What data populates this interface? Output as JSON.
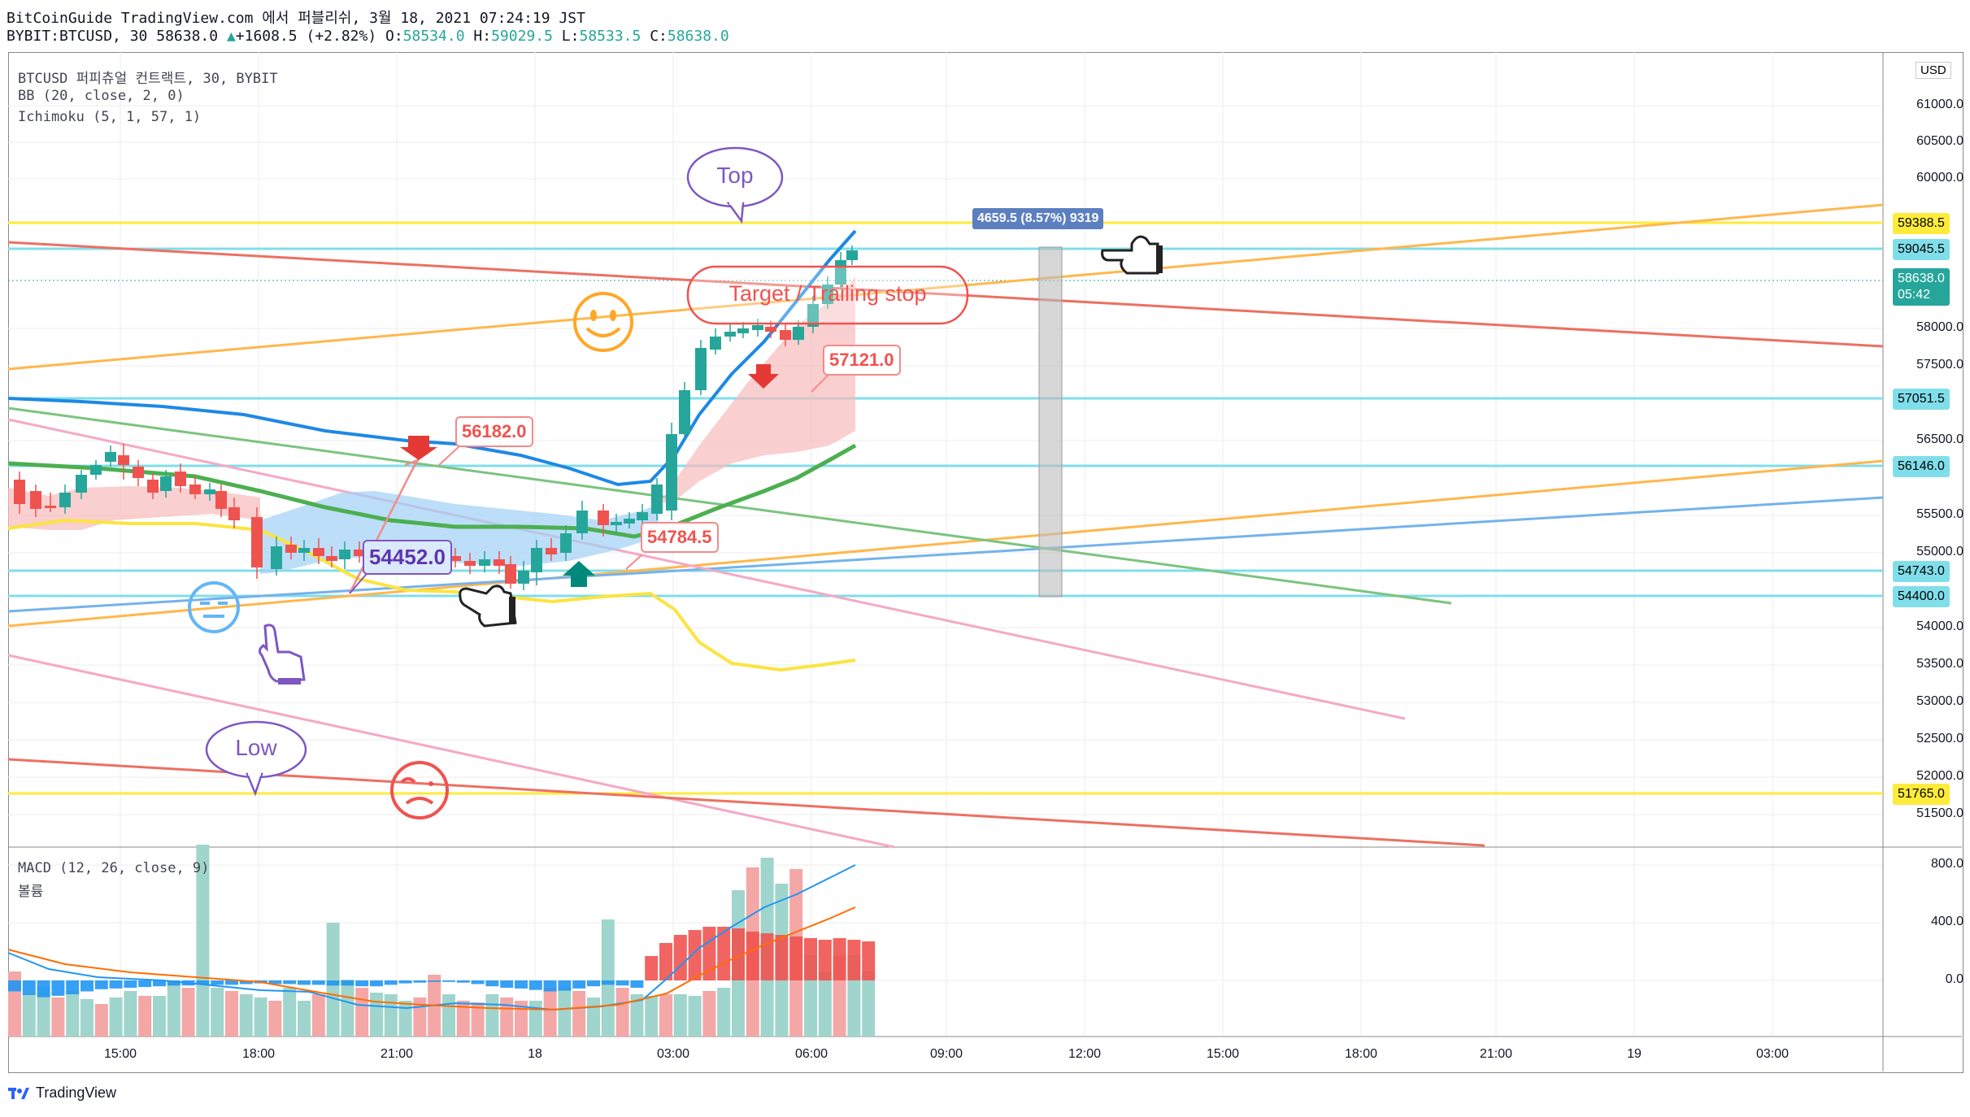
{
  "header": {
    "line1": "BitCoinGuide TradingView.com 에서 퍼블리쉬, 3월 18, 2021 07:24:19 JST",
    "symbol": "BYBIT:BTCUSD, 30",
    "last": "58638.0",
    "change": "+1608.5 (+2.82%)",
    "o_label": "O:",
    "o": "58534.0",
    "h_label": "H:",
    "h": "59029.5",
    "l_label": "L:",
    "l": "58533.5",
    "c_label": "C:",
    "c": "58638.0"
  },
  "indicators": {
    "title": "BTCUSD 퍼피츄얼 컨트랙트, 30, BYBIT",
    "bb": "BB (20, close, 2, 0)",
    "ichimoku": "Ichimoku (5, 1, 57, 1)",
    "macd": "MACD (12, 26, close, 9)",
    "volume": "볼륨"
  },
  "price_axis": {
    "currency": "USD",
    "ticks": [
      "61000.0",
      "60500.0",
      "60000.0",
      "58000.0",
      "57500.0",
      "56500.0",
      "55500.0",
      "55000.0",
      "54000.0",
      "53500.0",
      "53000.0",
      "52500.0",
      "52000.0",
      "51500.0"
    ],
    "labels": [
      {
        "text": "59388.5",
        "bg": "#ffeb3b",
        "fg": "#131722"
      },
      {
        "text": "59045.5",
        "bg": "#80deea",
        "fg": "#131722"
      },
      {
        "text": "57051.5",
        "bg": "#80deea",
        "fg": "#131722"
      },
      {
        "text": "56146.0",
        "bg": "#80deea",
        "fg": "#131722"
      },
      {
        "text": "54743.0",
        "bg": "#80deea",
        "fg": "#131722"
      },
      {
        "text": "54400.0",
        "bg": "#80deea",
        "fg": "#131722"
      },
      {
        "text": "51765.0",
        "bg": "#ffeb3b",
        "fg": "#131722"
      }
    ],
    "current_price": "58638.0",
    "countdown": "05:42"
  },
  "macd_axis": {
    "ticks": [
      "800.0",
      "400.0",
      "0.0"
    ]
  },
  "time_axis": [
    "15:00",
    "18:00",
    "21:00",
    "18",
    "03:00",
    "06:00",
    "09:00",
    "12:00",
    "15:00",
    "18:00",
    "21:00",
    "19",
    "03:00"
  ],
  "annotations": {
    "top": "Top",
    "low": "Low",
    "target": "Target / Trailing stop",
    "p1": "56182.0",
    "p2": "57121.0",
    "p3": "54452.0",
    "p4": "54784.5",
    "measure": "4659.5 (8.57%) 9319"
  },
  "footer": {
    "brand": "TradingView"
  },
  "colors": {
    "up": "#26a69a",
    "down": "#ef5350",
    "yellow": "#ffeb3b",
    "cyan": "#80deea",
    "orange": "#ffa726",
    "red": "#e57373",
    "pink": "#f48fb1",
    "blue": "#64b5f6",
    "green": "#66bb6a"
  }
}
